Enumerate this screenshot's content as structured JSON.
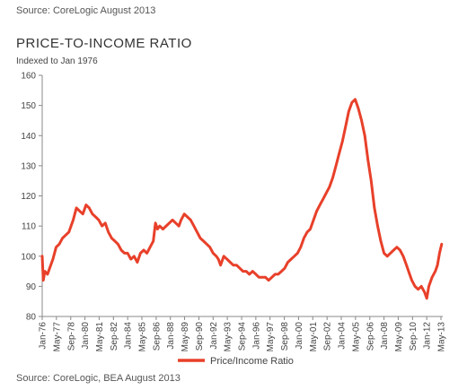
{
  "header": {
    "source_top": "Source: CoreLogic August 2013",
    "title": "PRICE-TO-INCOME RATIO",
    "subtitle": "Indexed to Jan 1976"
  },
  "footer": {
    "source_bottom": "Source: CoreLogic, BEA August 2013"
  },
  "chart_data": {
    "type": "line",
    "title": "PRICE-TO-INCOME RATIO",
    "subtitle": "Indexed to Jan 1976",
    "xlabel": "",
    "ylabel": "",
    "ylim": [
      80,
      160
    ],
    "yticks": [
      80,
      90,
      100,
      110,
      120,
      130,
      140,
      150,
      160
    ],
    "xlim": [
      1976.0,
      2013.5
    ],
    "xticks": [
      {
        "label": "Jan-76",
        "x": 1976.0
      },
      {
        "label": "May-77",
        "x": 1977.33
      },
      {
        "label": "Sep-78",
        "x": 1978.67
      },
      {
        "label": "Jan-80",
        "x": 1980.0
      },
      {
        "label": "May-81",
        "x": 1981.33
      },
      {
        "label": "Sep-82",
        "x": 1982.67
      },
      {
        "label": "Jan-84",
        "x": 1984.0
      },
      {
        "label": "May-85",
        "x": 1985.33
      },
      {
        "label": "Sep-86",
        "x": 1986.67
      },
      {
        "label": "Jan-88",
        "x": 1988.0
      },
      {
        "label": "May-89",
        "x": 1989.33
      },
      {
        "label": "Sep-90",
        "x": 1990.67
      },
      {
        "label": "Jan-92",
        "x": 1992.0
      },
      {
        "label": "May-93",
        "x": 1993.33
      },
      {
        "label": "Sep-94",
        "x": 1994.67
      },
      {
        "label": "Jan-96",
        "x": 1996.0
      },
      {
        "label": "May-97",
        "x": 1997.33
      },
      {
        "label": "Sep-98",
        "x": 1998.67
      },
      {
        "label": "Jan-00",
        "x": 2000.0
      },
      {
        "label": "May-01",
        "x": 2001.33
      },
      {
        "label": "Sep-02",
        "x": 2002.67
      },
      {
        "label": "Jan-04",
        "x": 2004.0
      },
      {
        "label": "May-05",
        "x": 2005.33
      },
      {
        "label": "Sep-06",
        "x": 2006.67
      },
      {
        "label": "Jan-08",
        "x": 2008.0
      },
      {
        "label": "May-09",
        "x": 2009.33
      },
      {
        "label": "Sep-10",
        "x": 2010.67
      },
      {
        "label": "Jan-12",
        "x": 2012.0
      },
      {
        "label": "May-13",
        "x": 2013.33
      }
    ],
    "grid": false,
    "legend": {
      "position": "bottom-center"
    },
    "series": [
      {
        "name": "Price/Income Ratio",
        "color": "#e8402a",
        "x": [
          1976.0,
          1976.1,
          1976.25,
          1976.5,
          1976.8,
          1977.0,
          1977.3,
          1977.6,
          1977.9,
          1978.2,
          1978.5,
          1978.9,
          1979.2,
          1979.5,
          1979.8,
          1980.1,
          1980.4,
          1980.7,
          1981.0,
          1981.3,
          1981.6,
          1981.9,
          1982.2,
          1982.5,
          1982.8,
          1983.1,
          1983.4,
          1983.7,
          1984.0,
          1984.3,
          1984.6,
          1984.9,
          1985.2,
          1985.5,
          1985.8,
          1986.1,
          1986.4,
          1986.6,
          1986.8,
          1987.0,
          1987.3,
          1987.6,
          1987.9,
          1988.2,
          1988.5,
          1988.8,
          1989.0,
          1989.3,
          1989.6,
          1989.9,
          1990.2,
          1990.5,
          1990.8,
          1991.1,
          1991.4,
          1991.7,
          1992.0,
          1992.3,
          1992.5,
          1992.7,
          1993.0,
          1993.3,
          1993.6,
          1993.9,
          1994.2,
          1994.5,
          1994.8,
          1995.1,
          1995.4,
          1995.7,
          1996.0,
          1996.3,
          1996.6,
          1996.9,
          1997.2,
          1997.5,
          1997.8,
          1998.1,
          1998.4,
          1998.7,
          1999.0,
          1999.3,
          1999.6,
          1999.9,
          2000.2,
          2000.5,
          2000.8,
          2001.1,
          2001.4,
          2001.7,
          2002.0,
          2002.3,
          2002.6,
          2002.9,
          2003.2,
          2003.5,
          2003.8,
          2004.1,
          2004.4,
          2004.7,
          2005.0,
          2005.3,
          2005.6,
          2005.9,
          2006.2,
          2006.5,
          2006.8,
          2007.1,
          2007.4,
          2007.7,
          2008.0,
          2008.3,
          2008.6,
          2008.9,
          2009.2,
          2009.5,
          2009.8,
          2010.1,
          2010.4,
          2010.6,
          2010.9,
          2011.2,
          2011.5,
          2011.8,
          2012.0,
          2012.2,
          2012.5,
          2012.8,
          2013.0,
          2013.2,
          2013.4
        ],
        "values": [
          100,
          92,
          95,
          94,
          97,
          99,
          103,
          104,
          106,
          107,
          108,
          112,
          116,
          115,
          114,
          117,
          116,
          114,
          113,
          112,
          110,
          111,
          108,
          106,
          105,
          104,
          102,
          101,
          101,
          99,
          100,
          98,
          101,
          102,
          101,
          103,
          105,
          111,
          109,
          110,
          109,
          110,
          111,
          112,
          111,
          110,
          112,
          114,
          113,
          112,
          110,
          108,
          106,
          105,
          104,
          103,
          101,
          100,
          99,
          97,
          100,
          99,
          98,
          97,
          97,
          96,
          95,
          95,
          94,
          95,
          94,
          93,
          93,
          93,
          92,
          93,
          94,
          94,
          95,
          96,
          98,
          99,
          100,
          101,
          103,
          106,
          108,
          109,
          112,
          115,
          117,
          119,
          121,
          123,
          126,
          130,
          134,
          138,
          143,
          148,
          151,
          152,
          149,
          145,
          140,
          132,
          125,
          116,
          110,
          105,
          101,
          100,
          101,
          102,
          103,
          102,
          100,
          97,
          94,
          92,
          90,
          89,
          90,
          88,
          86,
          90,
          93,
          95,
          97,
          101,
          104
        ]
      }
    ]
  }
}
